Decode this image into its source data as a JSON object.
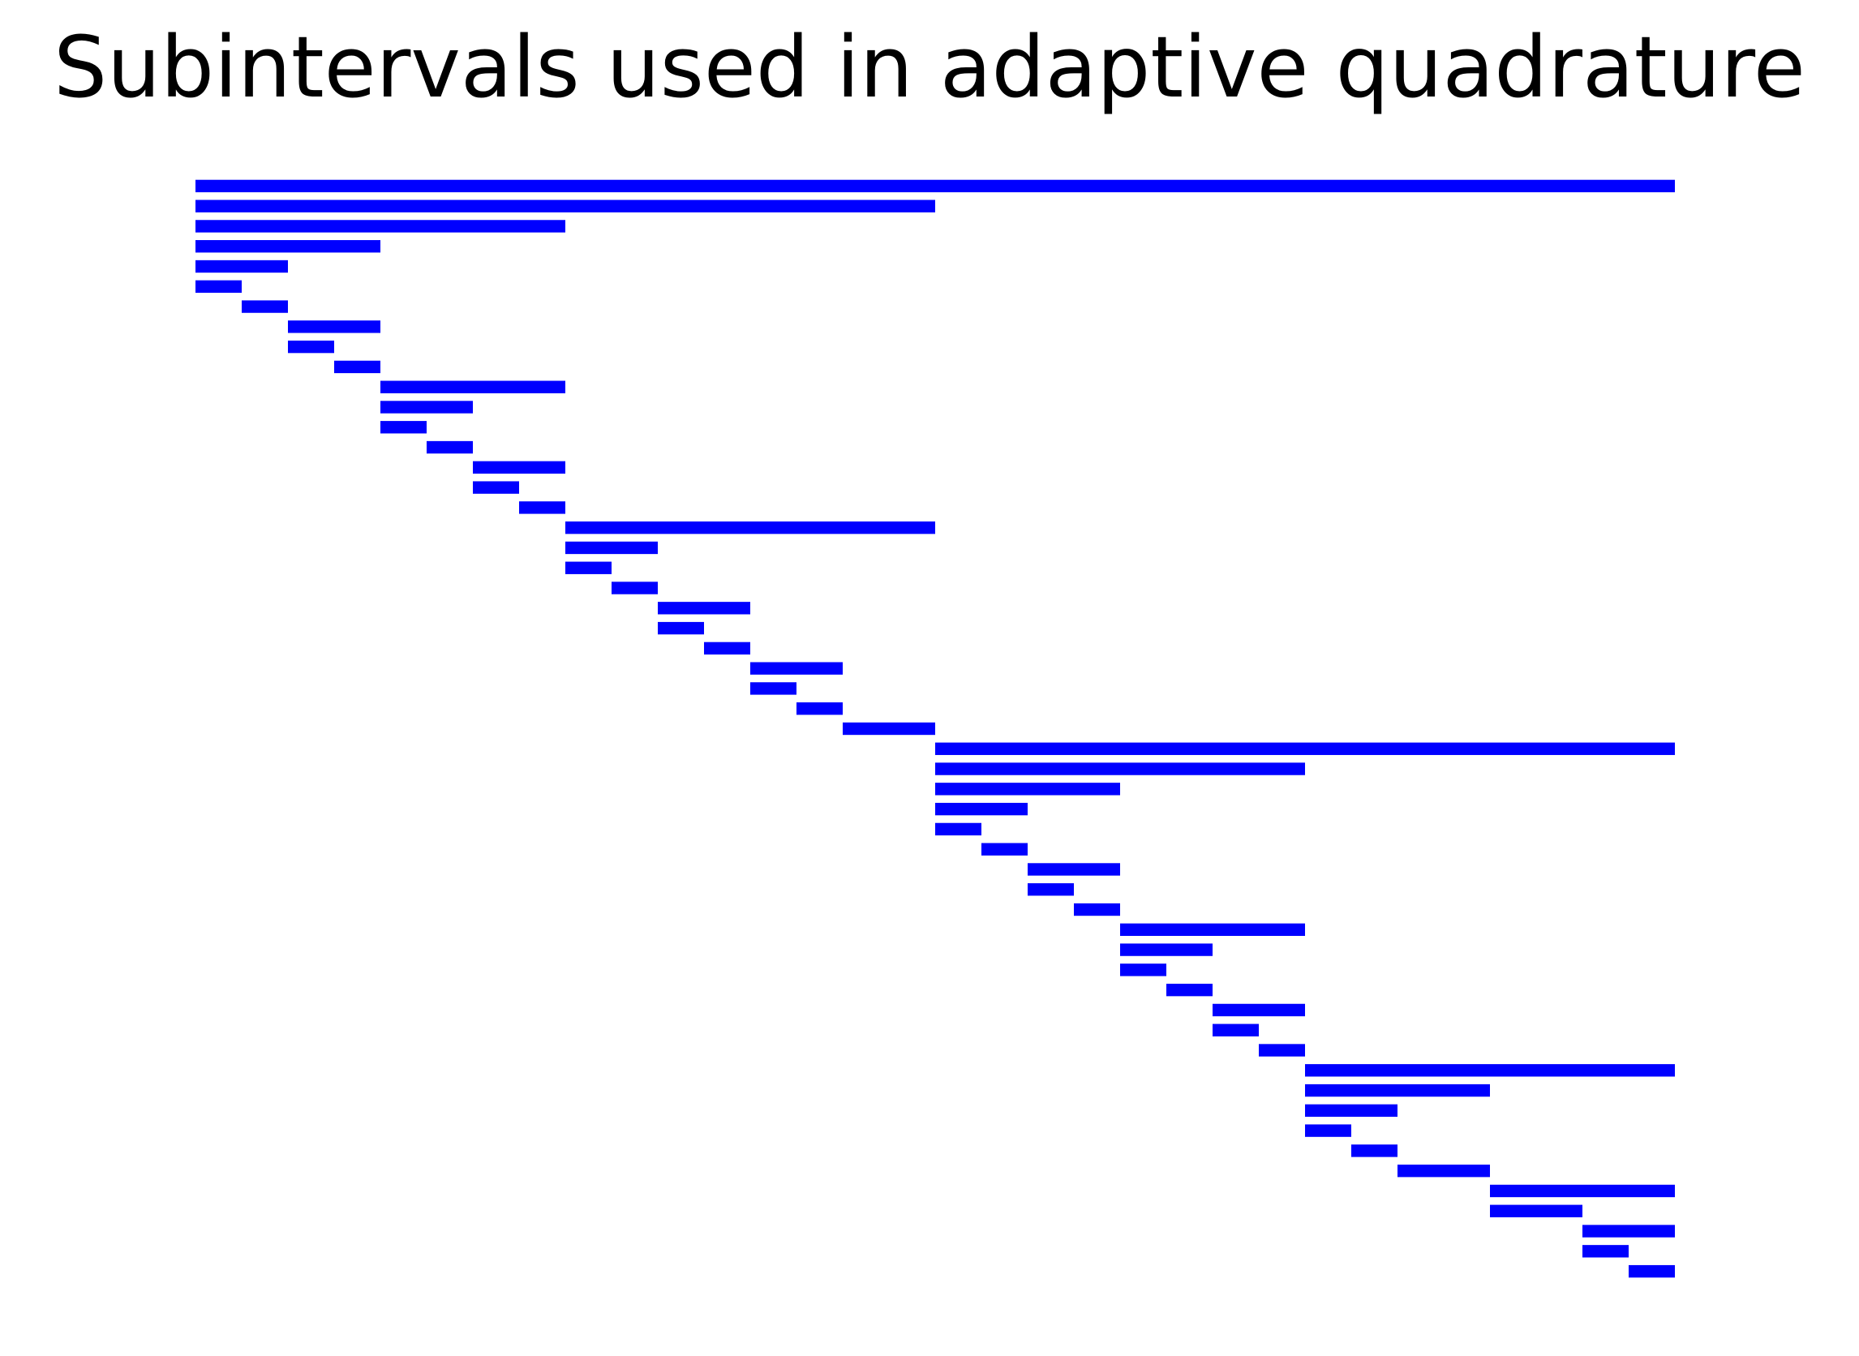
{
  "chart_data": {
    "type": "bar",
    "orientation": "horizontal",
    "title": "Subintervals used in adaptive quadrature",
    "xlabel": "",
    "ylabel": "",
    "axes_visible": false,
    "grid": false,
    "xlim": [
      0,
      1
    ],
    "bar_color": "#0000ff",
    "intervals": [
      [
        0.0,
        1.0
      ],
      [
        0.0,
        0.5
      ],
      [
        0.0,
        0.25
      ],
      [
        0.0,
        0.125
      ],
      [
        0.0,
        0.0625
      ],
      [
        0.0,
        0.03125
      ],
      [
        0.03125,
        0.0625
      ],
      [
        0.0625,
        0.125
      ],
      [
        0.0625,
        0.09375
      ],
      [
        0.09375,
        0.125
      ],
      [
        0.125,
        0.25
      ],
      [
        0.125,
        0.1875
      ],
      [
        0.125,
        0.15625
      ],
      [
        0.15625,
        0.1875
      ],
      [
        0.1875,
        0.25
      ],
      [
        0.1875,
        0.21875
      ],
      [
        0.21875,
        0.25
      ],
      [
        0.25,
        0.5
      ],
      [
        0.25,
        0.3125
      ],
      [
        0.25,
        0.28125
      ],
      [
        0.28125,
        0.3125
      ],
      [
        0.3125,
        0.375
      ],
      [
        0.3125,
        0.34375
      ],
      [
        0.34375,
        0.375
      ],
      [
        0.375,
        0.4375
      ],
      [
        0.375,
        0.40625
      ],
      [
        0.40625,
        0.4375
      ],
      [
        0.4375,
        0.5
      ],
      [
        0.5,
        1.0
      ],
      [
        0.5,
        0.75
      ],
      [
        0.5,
        0.625
      ],
      [
        0.5,
        0.5625
      ],
      [
        0.5,
        0.53125
      ],
      [
        0.53125,
        0.5625
      ],
      [
        0.5625,
        0.625
      ],
      [
        0.5625,
        0.59375
      ],
      [
        0.59375,
        0.625
      ],
      [
        0.625,
        0.75
      ],
      [
        0.625,
        0.6875
      ],
      [
        0.625,
        0.65625
      ],
      [
        0.65625,
        0.6875
      ],
      [
        0.6875,
        0.75
      ],
      [
        0.6875,
        0.71875
      ],
      [
        0.71875,
        0.75
      ],
      [
        0.75,
        1.0
      ],
      [
        0.75,
        0.875
      ],
      [
        0.75,
        0.8125
      ],
      [
        0.75,
        0.78125
      ],
      [
        0.78125,
        0.8125
      ],
      [
        0.8125,
        0.875
      ],
      [
        0.875,
        1.0
      ],
      [
        0.875,
        0.9375
      ],
      [
        0.9375,
        1.0
      ],
      [
        0.9375,
        0.96875
      ],
      [
        0.96875,
        1.0
      ]
    ]
  }
}
